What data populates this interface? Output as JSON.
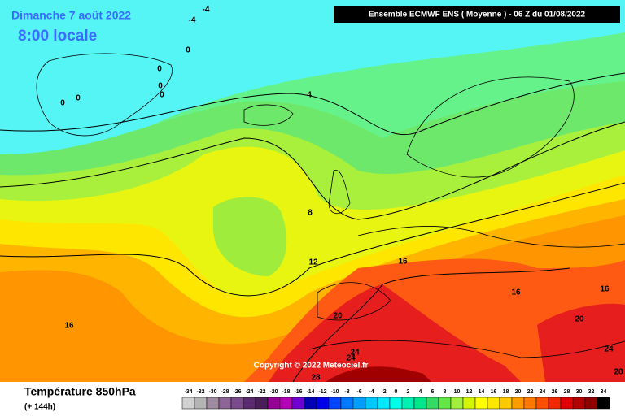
{
  "header": {
    "day": "Dimanche 7 août 2022",
    "time": "8:00 locale",
    "model": "Ensemble ECMWF ENS  ( Moyenne )  -  06 Z du 01/08/2022"
  },
  "copyright": "Copyright © 2022 Meteociel.fr",
  "footer": {
    "title": "Température 850hPa",
    "lead": "(+ 144h)"
  },
  "contour_labels": [
    -4,
    -4,
    0,
    0,
    0,
    0,
    0,
    0,
    4,
    8,
    12,
    16,
    16,
    16,
    16,
    20,
    20,
    24,
    24,
    24,
    28,
    28
  ],
  "legend": {
    "ticks": [
      -34,
      -32,
      -30,
      -28,
      -26,
      -24,
      -22,
      -20,
      -18,
      -16,
      -14,
      -12,
      -10,
      -8,
      -6,
      -4,
      -2,
      0,
      2,
      4,
      6,
      8,
      10,
      12,
      14,
      16,
      18,
      20,
      22,
      24,
      26,
      28,
      30,
      32,
      34
    ],
    "colors": [
      "#d0d0d0",
      "#b4b4b4",
      "#a08ca0",
      "#8c6496",
      "#7a4b8a",
      "#5a2a6e",
      "#4b1e5a",
      "#960096",
      "#b400b4",
      "#6e00d2",
      "#0000b4",
      "#0000e6",
      "#0046ff",
      "#0078ff",
      "#00a0ff",
      "#00c8ff",
      "#00e6ff",
      "#00ffe6",
      "#00f0b4",
      "#00e68c",
      "#32dc64",
      "#64e646",
      "#a0f03c",
      "#d2f50a",
      "#ffff00",
      "#ffe600",
      "#ffc800",
      "#ff9b00",
      "#ff7800",
      "#ff5000",
      "#f02800",
      "#dc0000",
      "#b40000",
      "#8c0000",
      "#000000"
    ]
  }
}
